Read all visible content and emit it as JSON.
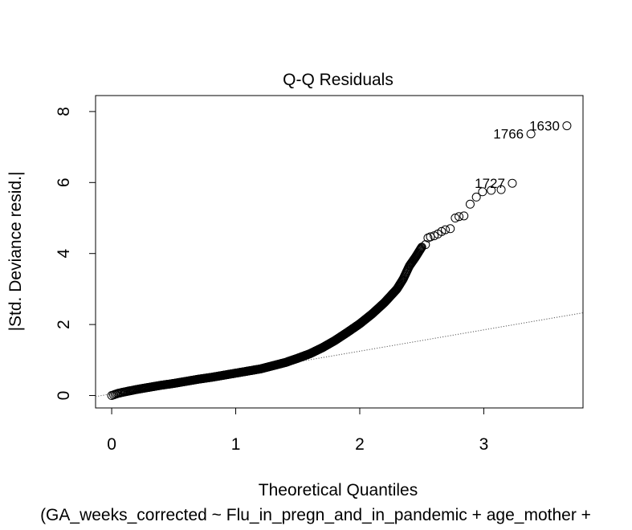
{
  "chart_data": {
    "type": "scatter",
    "title": "Q-Q Residuals",
    "xlabel": "Theoretical Quantiles",
    "ylabel": "|Std. Deviance resid.|",
    "subtitle": "(GA_weeks_corrected ~ Flu_in_pregn_and_in_pandemic + age_mother +",
    "xlim": [
      -0.13,
      3.8
    ],
    "ylim": [
      -0.35,
      8.45
    ],
    "x_ticks": [
      0,
      1,
      2,
      3
    ],
    "x_tick_labels": [
      "0",
      "1",
      "2",
      "3"
    ],
    "y_ticks": [
      0,
      2,
      4,
      6,
      8
    ],
    "y_tick_labels": [
      "0",
      "2",
      "4",
      "6",
      "8"
    ],
    "grid": false,
    "reference_line": {
      "style": "dotted",
      "points": [
        [
          -0.13,
          -0.03
        ],
        [
          3.8,
          2.33
        ]
      ]
    },
    "series": [
      {
        "marker": "open-circle",
        "bulk_curve": [
          [
            0.0,
            0.0
          ],
          [
            0.05,
            0.06
          ],
          [
            0.1,
            0.1
          ],
          [
            0.2,
            0.17
          ],
          [
            0.3,
            0.23
          ],
          [
            0.4,
            0.29
          ],
          [
            0.5,
            0.34
          ],
          [
            0.6,
            0.4
          ],
          [
            0.7,
            0.46
          ],
          [
            0.8,
            0.51
          ],
          [
            0.9,
            0.57
          ],
          [
            1.0,
            0.63
          ],
          [
            1.1,
            0.69
          ],
          [
            1.2,
            0.75
          ],
          [
            1.3,
            0.84
          ],
          [
            1.4,
            0.93
          ],
          [
            1.5,
            1.05
          ],
          [
            1.6,
            1.18
          ],
          [
            1.7,
            1.35
          ],
          [
            1.8,
            1.55
          ],
          [
            1.9,
            1.78
          ],
          [
            2.0,
            2.02
          ],
          [
            2.1,
            2.3
          ],
          [
            2.2,
            2.62
          ],
          [
            2.3,
            3.0
          ],
          [
            2.35,
            3.28
          ],
          [
            2.4,
            3.65
          ],
          [
            2.45,
            3.9
          ],
          [
            2.5,
            4.18
          ]
        ],
        "bulk_count": 480,
        "tail_points": [
          [
            2.53,
            4.25
          ],
          [
            2.55,
            4.44
          ],
          [
            2.57,
            4.47
          ],
          [
            2.6,
            4.5
          ],
          [
            2.63,
            4.55
          ],
          [
            2.66,
            4.62
          ],
          [
            2.69,
            4.67
          ],
          [
            2.73,
            4.7
          ],
          [
            2.77,
            5.0
          ],
          [
            2.8,
            5.04
          ],
          [
            2.84,
            5.06
          ],
          [
            2.89,
            5.39
          ],
          [
            2.94,
            5.59
          ],
          [
            2.99,
            5.74
          ],
          [
            3.06,
            5.78
          ],
          [
            3.14,
            5.8
          ],
          [
            3.23,
            5.98
          ],
          [
            3.38,
            7.37
          ],
          [
            3.67,
            7.6
          ]
        ]
      }
    ],
    "annotations": [
      {
        "text": "1630",
        "x": 3.67,
        "y": 7.6,
        "anchor": "end"
      },
      {
        "text": "1766",
        "x": 3.38,
        "y": 7.37,
        "anchor": "end"
      },
      {
        "text": "1727",
        "x": 3.23,
        "y": 5.98,
        "anchor": "end",
        "ref_point": [
          3.06,
          5.78
        ]
      }
    ]
  }
}
